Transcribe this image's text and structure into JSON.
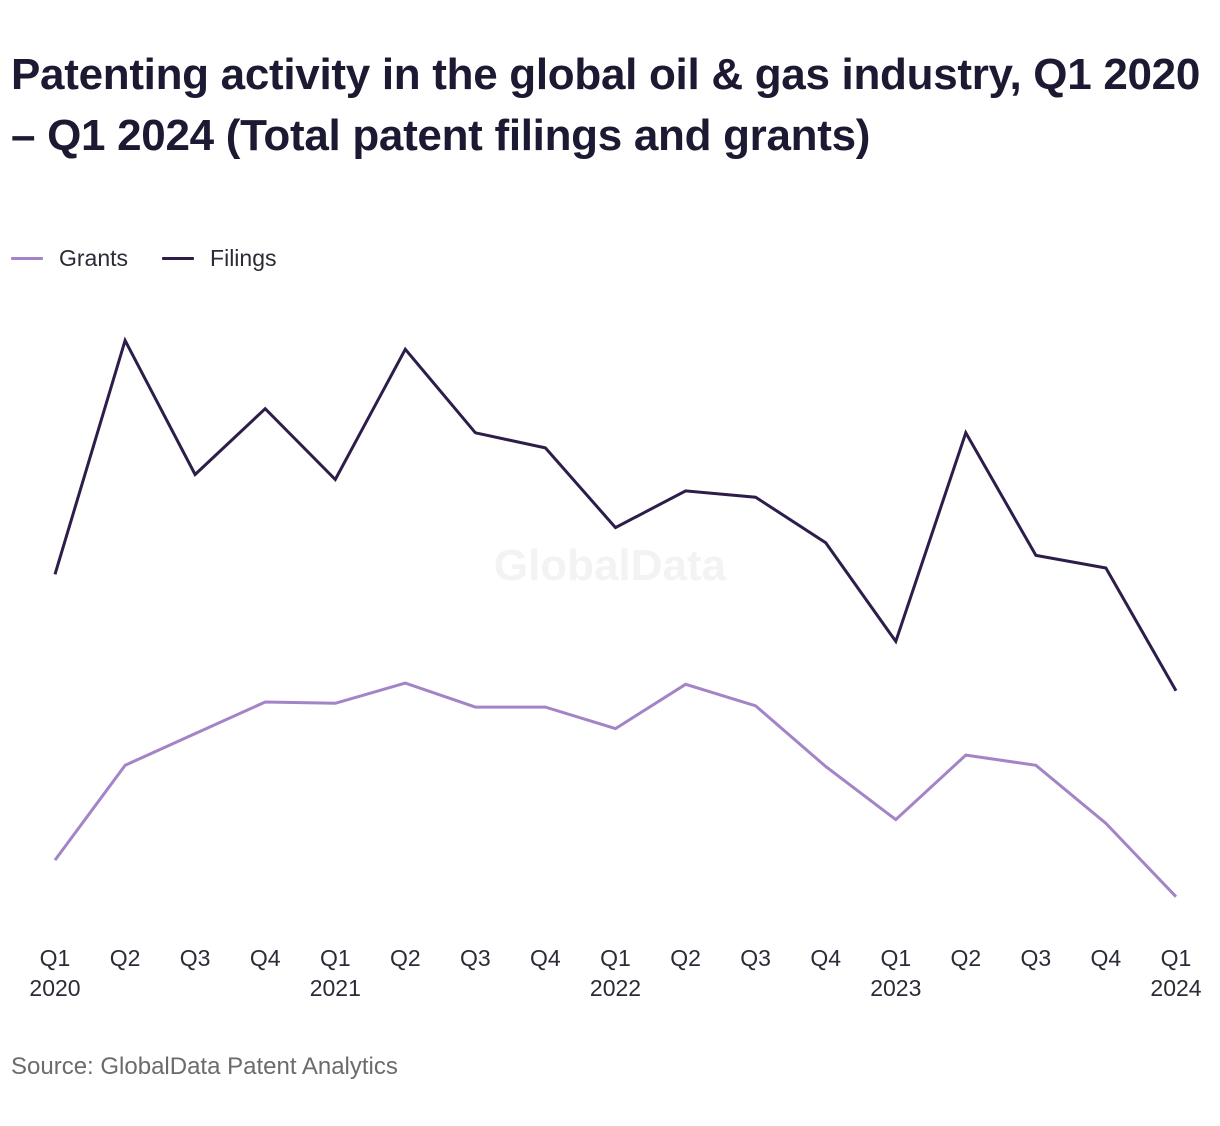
{
  "title": "Patenting activity in the global oil & gas industry, Q1 2020 – Q1 2024 (Total patent filings and grants)",
  "watermark": "GlobalData",
  "source": "Source: GlobalData Patent Analytics",
  "legend": [
    {
      "name": "Grants",
      "color": "#a384c6"
    },
    {
      "name": "Filings",
      "color": "#2d1d4a"
    }
  ],
  "chart_data": {
    "type": "line",
    "title": "Patenting activity in the global oil & gas industry, Q1 2020 – Q1 2024 (Total patent filings and grants)",
    "categories": [
      "Q1 2020",
      "Q2",
      "Q3",
      "Q4",
      "Q1 2021",
      "Q2",
      "Q3",
      "Q4",
      "Q1 2022",
      "Q2",
      "Q3",
      "Q4",
      "Q1 2023",
      "Q2",
      "Q3",
      "Q4",
      "Q1 2024"
    ],
    "tick_labels": [
      [
        "Q1",
        "2020"
      ],
      [
        "Q2",
        ""
      ],
      [
        "Q3",
        ""
      ],
      [
        "Q4",
        ""
      ],
      [
        "Q1",
        "2021"
      ],
      [
        "Q2",
        ""
      ],
      [
        "Q3",
        ""
      ],
      [
        "Q4",
        ""
      ],
      [
        "Q1",
        "2022"
      ],
      [
        "Q2",
        ""
      ],
      [
        "Q3",
        ""
      ],
      [
        "Q4",
        ""
      ],
      [
        "Q1",
        "2023"
      ],
      [
        "Q2",
        ""
      ],
      [
        "Q3",
        ""
      ],
      [
        "Q4",
        ""
      ],
      [
        "Q1",
        "2024"
      ]
    ],
    "series": [
      {
        "name": "Grants",
        "color": "#a384c6",
        "values": [
          117,
          192,
          217,
          242,
          241,
          257,
          238,
          238,
          221,
          256,
          239,
          191,
          149,
          200,
          192,
          146,
          88
        ]
      },
      {
        "name": "Filings",
        "color": "#2d1d4a",
        "values": [
          343,
          528,
          422,
          474,
          418,
          521,
          455,
          443,
          380,
          409,
          404,
          368,
          290,
          455,
          358,
          348,
          251
        ]
      }
    ],
    "ylim": [
      0,
      560
    ],
    "grid": false,
    "legend_position": "top-left",
    "xlabel": "",
    "ylabel": ""
  }
}
